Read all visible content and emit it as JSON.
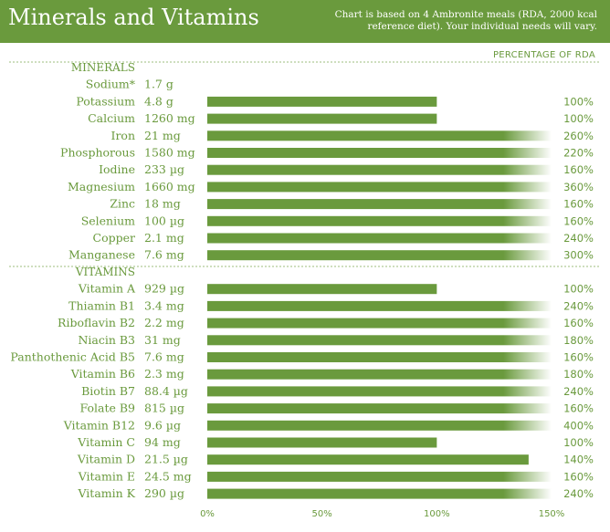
{
  "header": {
    "title": "Minerals and Vitamins",
    "note_line1": "Chart is based on 4 Ambronite meals (RDA, 2000 kcal",
    "note_line2": "reference diet). Your individual needs will vary."
  },
  "percentage_heading": "PERCENTAGE OF RDA",
  "colors": {
    "bar": "#6a9a3d",
    "text": "#6a9a3d",
    "header_bg": "#6a9a3d",
    "fade_to": "#ffffff"
  },
  "chart_data": {
    "type": "bar",
    "orientation": "horizontal",
    "xlim": [
      0,
      150
    ],
    "x_ticks": [
      "0%",
      "50%",
      "100%",
      "150%"
    ],
    "note": "Bars longer than 150% are capped and faded at the right edge.",
    "sections": [
      {
        "label": "MINERALS",
        "rows": [
          {
            "name": "Sodium*",
            "amount": "1.7 g",
            "percent": null,
            "percent_label": ""
          },
          {
            "name": "Potassium",
            "amount": "4.8 g",
            "percent": 100,
            "percent_label": "100%"
          },
          {
            "name": "Calcium",
            "amount": "1260 mg",
            "percent": 100,
            "percent_label": "100%"
          },
          {
            "name": "Iron",
            "amount": "21 mg",
            "percent": 260,
            "percent_label": "260%"
          },
          {
            "name": "Phosphorous",
            "amount": "1580 mg",
            "percent": 220,
            "percent_label": "220%"
          },
          {
            "name": "Iodine",
            "amount": "233 µg",
            "percent": 160,
            "percent_label": "160%"
          },
          {
            "name": "Magnesium",
            "amount": "1660 mg",
            "percent": 360,
            "percent_label": "360%"
          },
          {
            "name": "Zinc",
            "amount": "18 mg",
            "percent": 160,
            "percent_label": "160%"
          },
          {
            "name": "Selenium",
            "amount": "100 µg",
            "percent": 160,
            "percent_label": "160%"
          },
          {
            "name": "Copper",
            "amount": "2.1 mg",
            "percent": 240,
            "percent_label": "240%"
          },
          {
            "name": "Manganese",
            "amount": "7.6 mg",
            "percent": 300,
            "percent_label": "300%"
          }
        ]
      },
      {
        "label": "VITAMINS",
        "rows": [
          {
            "name": "Vitamin A",
            "amount": "929 µg",
            "percent": 100,
            "percent_label": "100%"
          },
          {
            "name": "Thiamin B1",
            "amount": "3.4 mg",
            "percent": 240,
            "percent_label": "240%"
          },
          {
            "name": "Riboflavin B2",
            "amount": "2.2 mg",
            "percent": 160,
            "percent_label": "160%"
          },
          {
            "name": "Niacin B3",
            "amount": "31 mg",
            "percent": 180,
            "percent_label": "180%"
          },
          {
            "name": "Panthothenic Acid B5",
            "amount": "7.6 mg",
            "percent": 160,
            "percent_label": "160%"
          },
          {
            "name": "Vitamin B6",
            "amount": "2.3 mg",
            "percent": 180,
            "percent_label": "180%"
          },
          {
            "name": "Biotin B7",
            "amount": "88.4 µg",
            "percent": 240,
            "percent_label": "240%"
          },
          {
            "name": "Folate B9",
            "amount": "815 µg",
            "percent": 160,
            "percent_label": "160%"
          },
          {
            "name": "Vitamin B12",
            "amount": "9.6 µg",
            "percent": 400,
            "percent_label": "400%"
          },
          {
            "name": "Vitamin C",
            "amount": "94 mg",
            "percent": 100,
            "percent_label": "100%"
          },
          {
            "name": "Vitamin D",
            "amount": "21.5 µg",
            "percent": 140,
            "percent_label": "140%"
          },
          {
            "name": "Vitamin E",
            "amount": "24.5 mg",
            "percent": 160,
            "percent_label": "160%"
          },
          {
            "name": "Vitamin K",
            "amount": "290 µg",
            "percent": 240,
            "percent_label": "240%"
          }
        ]
      }
    ]
  }
}
